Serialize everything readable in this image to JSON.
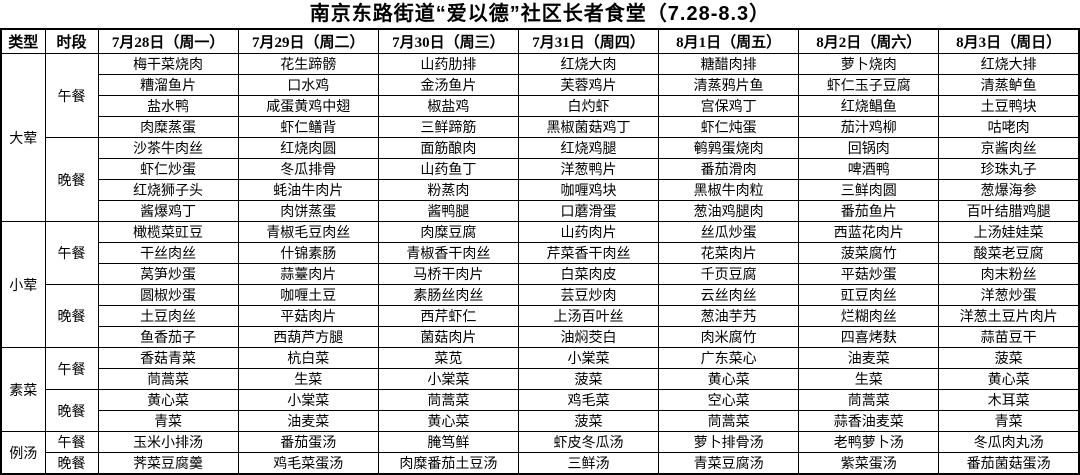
{
  "title": "南京东路街道“爱以德”社区长者食堂（7.28-8.3）",
  "table": {
    "col_headers": [
      "类型",
      "时段",
      "7月28日（周一）",
      "7月29日（周二）",
      "7月30日（周三）",
      "7月31日（周四）",
      "8月1日（周五）",
      "8月2日（周六）",
      "8月3日（周日）"
    ],
    "sections": [
      {
        "category": "大荤",
        "meals": [
          {
            "period": "午餐",
            "rows": [
              [
                "梅干菜烧肉",
                "花生蹄髈",
                "山药肋排",
                "红烧大肉",
                "糖醋肉排",
                "萝卜烧肉",
                "红烧大排"
              ],
              [
                "糟溜鱼片",
                "口水鸡",
                "金汤鱼片",
                "芙蓉鸡片",
                "清蒸鸦片鱼",
                "虾仁玉子豆腐",
                "清蒸鲈鱼"
              ],
              [
                "盐水鸭",
                "咸蛋黄鸡中翅",
                "椒盐鸡",
                "白灼虾",
                "宫保鸡丁",
                "红烧鲳鱼",
                "土豆鸭块"
              ],
              [
                "肉糜蒸蛋",
                "虾仁鳝背",
                "三鲜蹄筋",
                "黑椒菌菇鸡丁",
                "虾仁炖蛋",
                "茄汁鸡柳",
                "咕咾肉"
              ]
            ]
          },
          {
            "period": "晚餐",
            "rows": [
              [
                "沙茶牛肉丝",
                "红烧肉圆",
                "面筋酿肉",
                "红烧鸡腿",
                "鹌鹑蛋烧肉",
                "回锅肉",
                "京酱肉丝"
              ],
              [
                "虾仁炒蛋",
                "冬瓜排骨",
                "山药鱼丁",
                "洋葱鸭片",
                "番茄滑肉",
                "啤酒鸭",
                "珍珠丸子"
              ],
              [
                "红烧狮子头",
                "蚝油牛肉片",
                "粉蒸肉",
                "咖喱鸡块",
                "黑椒牛肉粒",
                "三鲜肉圆",
                "葱爆海参"
              ],
              [
                "酱爆鸡丁",
                "肉饼蒸蛋",
                "酱鸭腿",
                "口蘑滑蛋",
                "葱油鸡腿肉",
                "番茄鱼片",
                "百叶结腊鸡腿"
              ]
            ]
          }
        ]
      },
      {
        "category": "小荤",
        "meals": [
          {
            "period": "午餐",
            "rows": [
              [
                "橄榄菜豇豆",
                "青椒毛豆肉丝",
                "肉糜豆腐",
                "山药肉片",
                "丝瓜炒蛋",
                "西蓝花肉片",
                "上汤娃娃菜"
              ],
              [
                "干丝肉丝",
                "什锦素肠",
                "青椒香干肉丝",
                "芹菜香干肉丝",
                "花菜肉片",
                "菠菜腐竹",
                "酸菜老豆腐"
              ],
              [
                "莴笋炒蛋",
                "蒜薹肉片",
                "马桥干肉片",
                "白菜肉皮",
                "千页豆腐",
                "平菇炒蛋",
                "肉末粉丝"
              ]
            ]
          },
          {
            "period": "晚餐",
            "rows": [
              [
                "圆椒炒蛋",
                "咖喱土豆",
                "素肠丝肉丝",
                "芸豆炒肉",
                "云丝肉丝",
                "豇豆肉丝",
                "洋葱炒蛋"
              ],
              [
                "土豆肉丝",
                "平菇肉片",
                "西芹虾仁",
                "上汤百叶丝",
                "葱油芋艿",
                "烂糊肉丝",
                "洋葱土豆片肉片"
              ],
              [
                "鱼香茄子",
                "西葫芦方腿",
                "菌菇肉片",
                "油焖茭白",
                "肉米腐竹",
                "四喜烤麸",
                "蒜苗豆干"
              ]
            ]
          }
        ]
      },
      {
        "category": "素菜",
        "meals": [
          {
            "period": "午餐",
            "rows": [
              [
                "香菇青菜",
                "杭白菜",
                "菜苋",
                "小棠菜",
                "广东菜心",
                "油麦菜",
                "菠菜"
              ],
              [
                "茼蒿菜",
                "生菜",
                "小棠菜",
                "菠菜",
                "黄心菜",
                "生菜",
                "黄心菜"
              ]
            ]
          },
          {
            "period": "晚餐",
            "rows": [
              [
                "黄心菜",
                "小棠菜",
                "茼蒿菜",
                "鸡毛菜",
                "空心菜",
                "茼蒿菜",
                "木耳菜"
              ],
              [
                "青菜",
                "油麦菜",
                "黄心菜",
                "菠菜",
                "茼蒿菜",
                "蒜香油麦菜",
                "青菜"
              ]
            ]
          }
        ]
      },
      {
        "category": "例汤",
        "meals": [
          {
            "period": "午餐",
            "rows": [
              [
                "玉米小排汤",
                "番茄蛋汤",
                "腌笃鲜",
                "虾皮冬瓜汤",
                "萝卜排骨汤",
                "老鸭萝卜汤",
                "冬瓜肉丸汤"
              ]
            ]
          },
          {
            "period": "晚餐",
            "rows": [
              [
                "荠菜豆腐羹",
                "鸡毛菜蛋汤",
                "肉糜番茄土豆汤",
                "三鲜汤",
                "青菜豆腐汤",
                "紫菜蛋汤",
                "番茄菌菇蛋汤"
              ]
            ]
          }
        ]
      }
    ]
  }
}
